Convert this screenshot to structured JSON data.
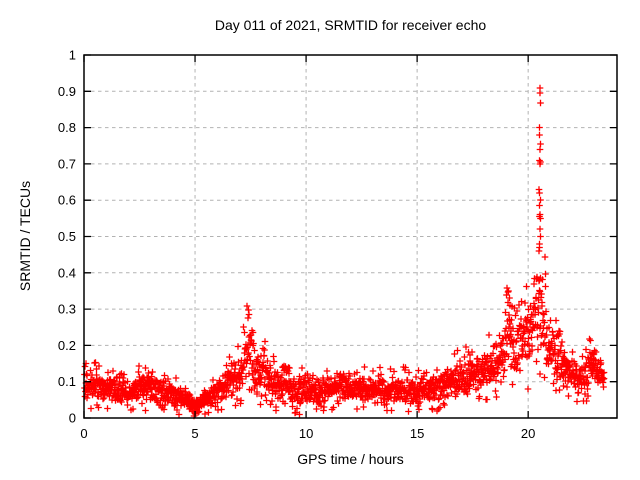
{
  "chart_data": {
    "type": "scatter",
    "title": "Day 011 of 2021, SRMTID for receiver echo",
    "xlabel": "GPS time / hours",
    "ylabel": "SRMTID / TECUs",
    "xlim": [
      0,
      24
    ],
    "ylim": [
      0,
      1
    ],
    "xticks": [
      0,
      5,
      10,
      15,
      20
    ],
    "xtick_labels": [
      "0",
      "5",
      "10",
      "15",
      "20"
    ],
    "yticks": [
      0,
      0.1,
      0.2,
      0.3,
      0.4,
      0.5,
      0.6,
      0.7,
      0.8,
      0.9,
      1
    ],
    "ytick_labels": [
      "0",
      "0.1",
      "0.2",
      "0.3",
      "0.4",
      "0.5",
      "0.6",
      "0.7",
      "0.8",
      "0.9",
      "1"
    ],
    "grid": true,
    "legend": "none",
    "marker": "plus",
    "marker_color": "#ff0000",
    "grid_color": "#b2b2b2",
    "axis_color": "#000000",
    "x_start": 0.02,
    "x_end": 23.42,
    "sample_interval_hours": 0.0111,
    "seed": 20210111,
    "envelope": [
      [
        0.0,
        0.04,
        0.13
      ],
      [
        0.5,
        0.05,
        0.13
      ],
      [
        1.0,
        0.04,
        0.12
      ],
      [
        1.5,
        0.04,
        0.12
      ],
      [
        2.0,
        0.03,
        0.11
      ],
      [
        2.5,
        0.04,
        0.12
      ],
      [
        3.0,
        0.04,
        0.12
      ],
      [
        3.5,
        0.03,
        0.11
      ],
      [
        4.0,
        0.03,
        0.1
      ],
      [
        4.5,
        0.02,
        0.09
      ],
      [
        5.0,
        0.01,
        0.06
      ],
      [
        5.4,
        0.02,
        0.07
      ],
      [
        5.8,
        0.03,
        0.1
      ],
      [
        6.2,
        0.04,
        0.13
      ],
      [
        6.6,
        0.05,
        0.16
      ],
      [
        7.0,
        0.06,
        0.17
      ],
      [
        7.2,
        0.08,
        0.24
      ],
      [
        7.4,
        0.1,
        0.29
      ],
      [
        7.6,
        0.08,
        0.25
      ],
      [
        7.9,
        0.06,
        0.17
      ],
      [
        8.1,
        0.07,
        0.21
      ],
      [
        8.4,
        0.05,
        0.15
      ],
      [
        8.8,
        0.04,
        0.13
      ],
      [
        9.0,
        0.05,
        0.17
      ],
      [
        9.3,
        0.04,
        0.13
      ],
      [
        9.7,
        0.03,
        0.12
      ],
      [
        10.0,
        0.04,
        0.12
      ],
      [
        10.5,
        0.03,
        0.11
      ],
      [
        11.0,
        0.04,
        0.12
      ],
      [
        11.5,
        0.05,
        0.13
      ],
      [
        12.0,
        0.04,
        0.12
      ],
      [
        12.5,
        0.04,
        0.12
      ],
      [
        13.0,
        0.04,
        0.13
      ],
      [
        13.5,
        0.03,
        0.11
      ],
      [
        14.0,
        0.04,
        0.12
      ],
      [
        14.5,
        0.04,
        0.12
      ],
      [
        15.0,
        0.03,
        0.11
      ],
      [
        15.5,
        0.04,
        0.13
      ],
      [
        16.0,
        0.04,
        0.13
      ],
      [
        16.5,
        0.05,
        0.15
      ],
      [
        17.0,
        0.05,
        0.16
      ],
      [
        17.5,
        0.06,
        0.17
      ],
      [
        18.0,
        0.07,
        0.18
      ],
      [
        18.5,
        0.08,
        0.21
      ],
      [
        18.9,
        0.1,
        0.26
      ],
      [
        19.1,
        0.12,
        0.34
      ],
      [
        19.35,
        0.1,
        0.27
      ],
      [
        19.6,
        0.12,
        0.3
      ],
      [
        19.85,
        0.14,
        0.33
      ],
      [
        20.1,
        0.12,
        0.36
      ],
      [
        20.3,
        0.15,
        0.4
      ],
      [
        20.5,
        0.18,
        0.5
      ],
      [
        20.65,
        0.16,
        0.45
      ],
      [
        20.85,
        0.12,
        0.32
      ],
      [
        21.1,
        0.1,
        0.26
      ],
      [
        21.4,
        0.1,
        0.23
      ],
      [
        21.7,
        0.09,
        0.21
      ],
      [
        22.0,
        0.07,
        0.17
      ],
      [
        22.3,
        0.06,
        0.15
      ],
      [
        22.6,
        0.07,
        0.18
      ],
      [
        22.9,
        0.09,
        0.22
      ],
      [
        23.1,
        0.08,
        0.19
      ],
      [
        23.42,
        0.07,
        0.15
      ]
    ],
    "extra_points": [
      [
        7.38,
        0.275
      ],
      [
        7.42,
        0.285
      ],
      [
        19.12,
        0.35
      ],
      [
        19.15,
        0.33
      ],
      [
        19.18,
        0.31
      ],
      [
        20.48,
        0.46
      ],
      [
        20.5,
        0.47
      ],
      [
        20.52,
        0.48
      ],
      [
        20.55,
        0.5
      ],
      [
        20.53,
        0.52
      ],
      [
        20.56,
        0.55
      ],
      [
        20.5,
        0.555
      ],
      [
        20.54,
        0.56
      ],
      [
        20.52,
        0.585
      ],
      [
        20.55,
        0.6
      ],
      [
        20.51,
        0.62
      ],
      [
        20.49,
        0.63
      ],
      [
        20.53,
        0.7
      ],
      [
        20.56,
        0.705
      ],
      [
        20.52,
        0.71
      ],
      [
        20.54,
        0.74
      ],
      [
        20.55,
        0.755
      ],
      [
        20.51,
        0.78
      ],
      [
        20.5,
        0.8
      ],
      [
        20.55,
        0.868
      ],
      [
        20.54,
        0.895
      ],
      [
        20.53,
        0.909
      ]
    ]
  }
}
